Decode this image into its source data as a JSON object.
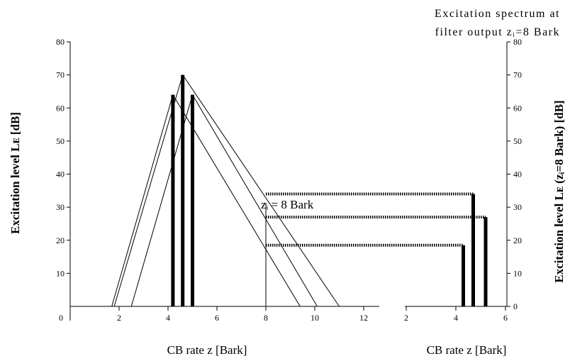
{
  "chart_data": {
    "type": "line",
    "right_title_lines": [
      "Excitation spectrum at",
      "filter output zᵢ=8 Bark"
    ],
    "left_ylabel": "Excitation level Lᴇ [dB]",
    "right_ylabel": "Excitation level Lᴇ (zᵢ=8 Bark) [dB]",
    "left_xlabel": "CB rate z [Bark]",
    "right_xlabel": "CB rate z [Bark]",
    "marker_label": "zᵢ = 8 Bark",
    "origin_label": "0",
    "ylim": [
      0,
      80
    ],
    "left_xlim": [
      0,
      12
    ],
    "right_xlim": [
      2,
      6
    ],
    "y_ticks": [
      10,
      20,
      30,
      40,
      50,
      60,
      70,
      80
    ],
    "right_y_ticks": [
      0,
      10,
      20,
      30,
      40,
      50,
      60,
      70,
      80
    ],
    "left_x_ticks": [
      2,
      4,
      6,
      8,
      10,
      12
    ],
    "right_x_ticks": [
      2,
      4,
      6
    ],
    "marker_z": 8,
    "maskers": [
      {
        "z": 4.2,
        "level": 64,
        "lower_base": 1.7,
        "upper_base": 9.4
      },
      {
        "z": 4.6,
        "level": 70,
        "lower_base": 1.8,
        "upper_base": 11.0
      },
      {
        "z": 5.0,
        "level": 64,
        "lower_base": 2.5,
        "upper_base": 10.1
      }
    ],
    "filter_outputs": [
      {
        "z": 4.3,
        "level": 18.5
      },
      {
        "z": 4.7,
        "level": 34
      },
      {
        "z": 5.2,
        "level": 27
      }
    ]
  }
}
